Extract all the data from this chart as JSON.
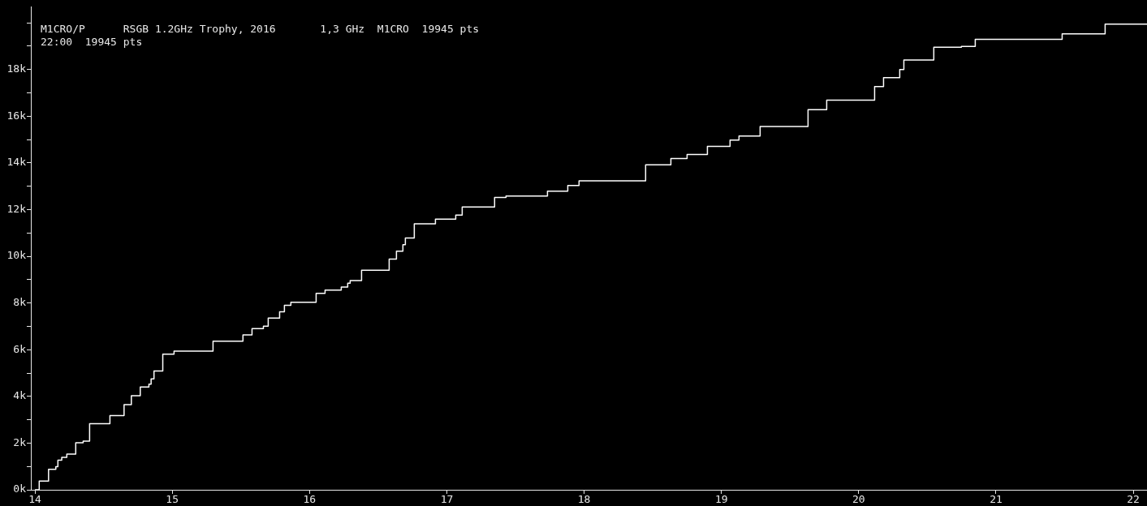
{
  "chart_data": {
    "type": "step",
    "title": "M1CRO/P      RSGB 1.2GHz Trophy, 2016       1,3 GHz  M1CRO  19945 pts",
    "subtitle": "22:00  19945 pts",
    "x": [
      14.0,
      14.031,
      14.099,
      14.152,
      14.167,
      14.195,
      14.232,
      14.297,
      14.351,
      14.398,
      14.546,
      14.649,
      14.702,
      14.767,
      14.83,
      14.846,
      14.867,
      14.931,
      15.013,
      15.297,
      15.515,
      15.581,
      15.664,
      15.699,
      15.782,
      15.817,
      15.864,
      16.048,
      16.113,
      16.231,
      16.278,
      16.296,
      16.379,
      16.58,
      16.633,
      16.68,
      16.698,
      16.763,
      16.917,
      17.065,
      17.112,
      17.348,
      17.431,
      17.733,
      17.881,
      17.963,
      18.448,
      18.632,
      18.75,
      18.898,
      19.063,
      19.128,
      19.282,
      19.631,
      19.767,
      20.116,
      20.181,
      20.299,
      20.329,
      20.547,
      20.748,
      20.849,
      21.482,
      21.795,
      22.1
    ],
    "series": [
      {
        "color": "#ffffff",
        "values": [
          0,
          370,
          880,
          990,
          1270,
          1390,
          1530,
          2010,
          2080,
          2830,
          3180,
          3650,
          4030,
          4400,
          4520,
          4750,
          5090,
          5810,
          5940,
          6360,
          6630,
          6900,
          7010,
          7350,
          7620,
          7900,
          8030,
          8410,
          8550,
          8680,
          8850,
          8960,
          9400,
          9880,
          10220,
          10500,
          10780,
          11390,
          11590,
          11760,
          12110,
          12520,
          12580,
          12790,
          13030,
          13230,
          13920,
          14190,
          14360,
          14710,
          14980,
          15150,
          15560,
          16280,
          16690,
          17270,
          17650,
          18000,
          18410,
          18950,
          18990,
          19290,
          19530,
          19945,
          19945
        ]
      }
    ],
    "xlim": [
      13.97,
      22.1
    ],
    "xticks": [
      14,
      15,
      16,
      17,
      18,
      19,
      20,
      21,
      22
    ],
    "ylim": [
      0,
      20670
    ],
    "yticks": [
      {
        "value": 0,
        "label": "0k"
      },
      {
        "value": 1000,
        "label": null
      },
      {
        "value": 2000,
        "label": "2k"
      },
      {
        "value": 3000,
        "label": null
      },
      {
        "value": 4000,
        "label": "4k"
      },
      {
        "value": 5000,
        "label": null
      },
      {
        "value": 6000,
        "label": "6k"
      },
      {
        "value": 7000,
        "label": null
      },
      {
        "value": 8000,
        "label": "8k"
      },
      {
        "value": 9000,
        "label": null
      },
      {
        "value": 10000,
        "label": "10k"
      },
      {
        "value": 11000,
        "label": null
      },
      {
        "value": 12000,
        "label": "12k"
      },
      {
        "value": 13000,
        "label": null
      },
      {
        "value": 14000,
        "label": "14k"
      },
      {
        "value": 15000,
        "label": null
      },
      {
        "value": 16000,
        "label": "16k"
      },
      {
        "value": 17000,
        "label": null
      },
      {
        "value": 18000,
        "label": "18k"
      },
      {
        "value": 19000,
        "label": null
      },
      {
        "value": 20000,
        "label": null
      }
    ],
    "grid": false,
    "legend": false
  }
}
